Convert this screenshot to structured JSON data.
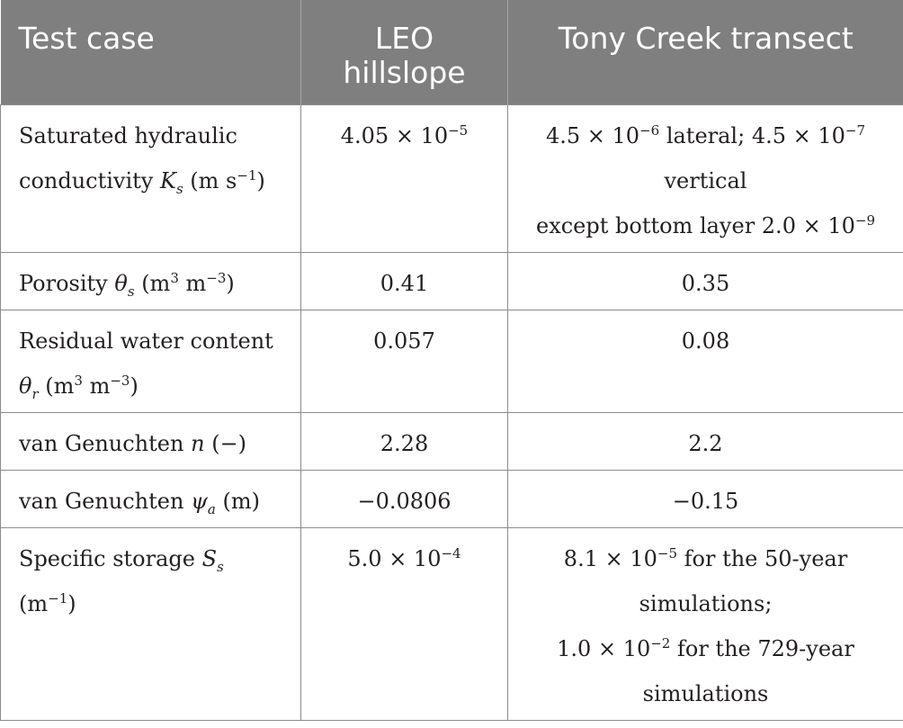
{
  "header": {
    "col_test_case": "Test case",
    "col_leo": "LEO hillslope",
    "col_tony": "Tony Creek transect"
  },
  "rows": [
    {
      "param_text": "Saturated hydraulic conductivity",
      "param_symbol": "K",
      "param_symbol_sub": "s",
      "param_unit_open": "(m s",
      "param_unit_sup": "−1",
      "param_unit_close": ")",
      "leo": {
        "mantissa": "4.05 × 10",
        "exp": "−5"
      },
      "tony": {
        "lateral_mantissa": "4.5 × 10",
        "lateral_exp": "−6",
        "lateral_label": "lateral;",
        "vertical_mantissa": "4.5 × 10",
        "vertical_exp": "−7",
        "vertical_label": "vertical",
        "except_text": "except bottom layer 2.0 × 10",
        "except_exp": "−9"
      }
    },
    {
      "param_text": "Porosity",
      "param_symbol": "θ",
      "param_symbol_sub": "s",
      "unit_m": "(m",
      "unit_sup1": "3",
      "unit_m2": "m",
      "unit_sup2": "−3",
      "unit_close": ")",
      "leo": "0.41",
      "tony": "0.35"
    },
    {
      "param_text": "Residual water content",
      "param_symbol": "θ",
      "param_symbol_sub": "r",
      "unit_m": "(m",
      "unit_sup1": "3",
      "unit_m2": "m",
      "unit_sup2": "−3",
      "unit_close": ")",
      "leo": "0.057",
      "tony": "0.08"
    },
    {
      "param_text": "van Genuchten",
      "param_symbol": "n",
      "param_unit": "(−)",
      "leo": "2.28",
      "tony": "2.2"
    },
    {
      "param_text": "van Genuchten",
      "param_symbol": "ψ",
      "param_symbol_sub": "a",
      "param_unit": "(m)",
      "leo": "−0.0806",
      "tony": "−0.15"
    },
    {
      "param_text": "Specific storage",
      "param_symbol": "S",
      "param_symbol_sub": "s",
      "param_unit_open": "(m",
      "param_unit_sup": "−1",
      "param_unit_close": ")",
      "leo": {
        "mantissa": "5.0 × 10",
        "exp": "−4"
      },
      "tony": {
        "a_mantissa": "8.1 × 10",
        "a_exp": "−5",
        "a_text": "for the 50-year simulations;",
        "b_mantissa": "1.0 × 10",
        "b_exp": "−2",
        "b_text": "for the 729-year simulations"
      }
    }
  ]
}
